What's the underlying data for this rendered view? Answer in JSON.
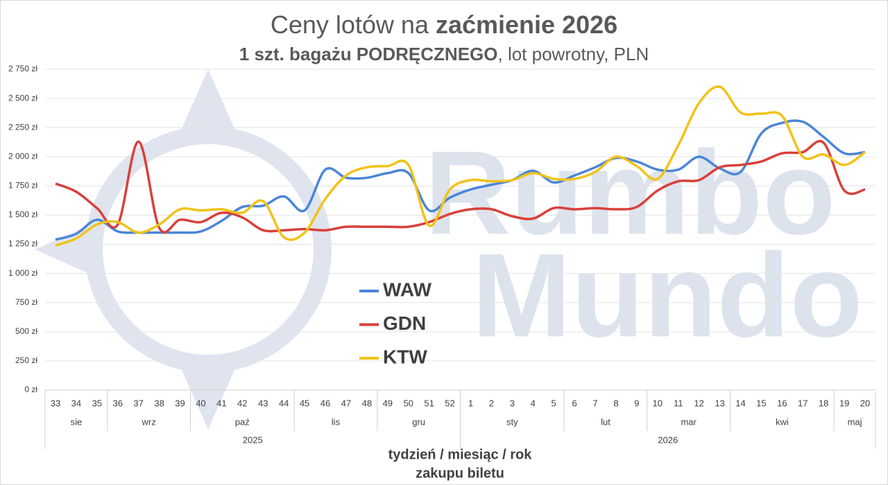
{
  "chart_data": {
    "type": "line",
    "title": [
      {
        "text": "Ceny lotów na ",
        "bold": false
      },
      {
        "text": "zaćmienie 2026",
        "bold": true
      }
    ],
    "subtitle": [
      {
        "text": "1 szt. bagażu PODRĘCZNEGO",
        "bold": true
      },
      {
        "text": ", lot powrotny, PLN",
        "bold": false
      }
    ],
    "x_axis_title": [
      "tydzień / miesiąc / rok",
      "zakupu biletu"
    ],
    "watermark": [
      "Rumbo",
      "Mundo"
    ],
    "categories": [
      "33",
      "34",
      "35",
      "36",
      "37",
      "38",
      "39",
      "40",
      "41",
      "42",
      "43",
      "44",
      "45",
      "46",
      "47",
      "48",
      "49",
      "50",
      "51",
      "52",
      "1",
      "2",
      "3",
      "4",
      "5",
      "6",
      "7",
      "8",
      "9",
      "10",
      "11",
      "12",
      "13",
      "14",
      "15",
      "16",
      "17",
      "18",
      "19",
      "20"
    ],
    "month_groups": [
      {
        "label": "sie",
        "span": 3
      },
      {
        "label": "wrz",
        "span": 4
      },
      {
        "label": "paź",
        "span": 5
      },
      {
        "label": "lis",
        "span": 4
      },
      {
        "label": "gru",
        "span": 4
      },
      {
        "label": "sty",
        "span": 5
      },
      {
        "label": "lut",
        "span": 4
      },
      {
        "label": "mar",
        "span": 4
      },
      {
        "label": "kwi",
        "span": 5
      },
      {
        "label": "maj",
        "span": 2
      }
    ],
    "year_groups": [
      {
        "label": "2025",
        "span": 20
      },
      {
        "label": "2026",
        "span": 20
      }
    ],
    "series": [
      {
        "name": "WAW",
        "color": "#4a86d8",
        "values": [
          1290,
          1340,
          1460,
          1360,
          1350,
          1350,
          1350,
          1360,
          1450,
          1570,
          1580,
          1660,
          1540,
          1890,
          1820,
          1820,
          1860,
          1860,
          1540,
          1650,
          1720,
          1760,
          1800,
          1880,
          1780,
          1840,
          1910,
          1990,
          1960,
          1890,
          1890,
          2000,
          1900,
          1870,
          2200,
          2290,
          2300,
          2170,
          2030,
          2040
        ]
      },
      {
        "name": "GDN",
        "color": "#d9403a",
        "values": [
          1770,
          1700,
          1560,
          1420,
          2130,
          1390,
          1460,
          1440,
          1520,
          1480,
          1370,
          1370,
          1380,
          1370,
          1400,
          1400,
          1400,
          1400,
          1440,
          1510,
          1550,
          1550,
          1490,
          1470,
          1560,
          1550,
          1560,
          1550,
          1570,
          1710,
          1790,
          1800,
          1910,
          1930,
          1960,
          2030,
          2040,
          2120,
          1710,
          1720
        ]
      },
      {
        "name": "KTW",
        "color": "#f2c218",
        "values": [
          1240,
          1300,
          1420,
          1440,
          1350,
          1420,
          1550,
          1540,
          1550,
          1520,
          1620,
          1310,
          1350,
          1640,
          1840,
          1910,
          1920,
          1930,
          1410,
          1720,
          1800,
          1790,
          1800,
          1860,
          1810,
          1810,
          1870,
          2000,
          1920,
          1810,
          2100,
          2460,
          2600,
          2380,
          2370,
          2350,
          2000,
          2020,
          1930,
          2040
        ]
      }
    ],
    "ylim": [
      0,
      2750
    ],
    "yticks": [
      {
        "value": 0,
        "label": "0 zł"
      },
      {
        "value": 250,
        "label": "250 zł"
      },
      {
        "value": 500,
        "label": "500 zł"
      },
      {
        "value": 750,
        "label": "750 zł"
      },
      {
        "value": 1000,
        "label": "1 000 zł"
      },
      {
        "value": 1250,
        "label": "1 250 zł"
      },
      {
        "value": 1500,
        "label": "1 500 zł"
      },
      {
        "value": 1750,
        "label": "1 750 zł"
      },
      {
        "value": 2000,
        "label": "2 000 zł"
      },
      {
        "value": 2250,
        "label": "2 250 zł"
      },
      {
        "value": 2500,
        "label": "2 500 zł"
      },
      {
        "value": 2750,
        "label": "2 750 zł"
      }
    ],
    "grid": true,
    "smooth": true,
    "legend": "center"
  }
}
